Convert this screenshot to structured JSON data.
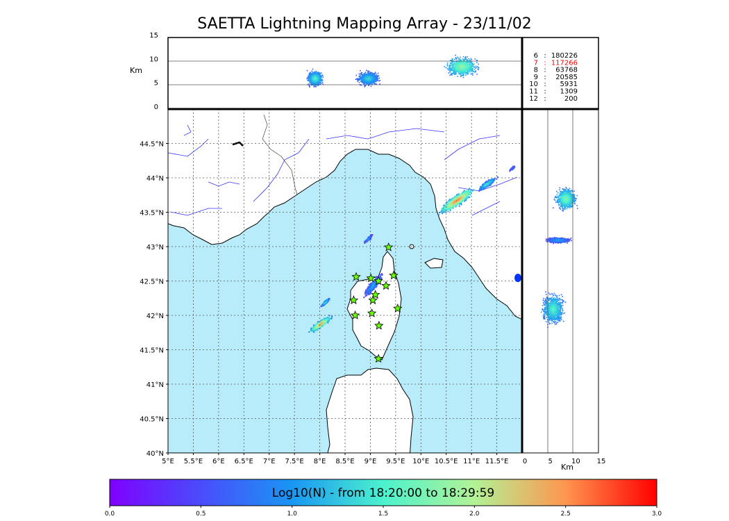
{
  "chart_data": {
    "type": "scatter",
    "title": "SAETTA Lightning Mapping Array - 23/11/02",
    "map": {
      "xlim": [
        5,
        12
      ],
      "ylim": [
        40,
        45
      ],
      "x_ticks": [
        "5°E",
        "5.5°E",
        "6°E",
        "6.5°E",
        "7°E",
        "7.5°E",
        "8°E",
        "8.5°E",
        "9°E",
        "9.5°E",
        "10°E",
        "10.5°E",
        "11°E",
        "11.5°E"
      ],
      "x_tick_values": [
        5,
        5.5,
        6,
        6.5,
        7,
        7.5,
        8,
        8.5,
        9,
        9.5,
        10,
        10.5,
        11,
        11.5
      ],
      "y_ticks": [
        "40°N",
        "40.5°N",
        "41°N",
        "41.5°N",
        "42°N",
        "42.5°N",
        "43°N",
        "43.5°N",
        "44°N",
        "44.5°N"
      ],
      "y_tick_values": [
        40,
        40.5,
        41,
        41.5,
        42,
        42.5,
        43,
        43.5,
        44,
        44.5
      ],
      "grid": true,
      "stations": [
        {
          "lon": 9.36,
          "lat": 42.99
        },
        {
          "lon": 8.72,
          "lat": 42.56
        },
        {
          "lon": 9.01,
          "lat": 42.54
        },
        {
          "lon": 9.16,
          "lat": 42.5
        },
        {
          "lon": 9.46,
          "lat": 42.58
        },
        {
          "lon": 9.31,
          "lat": 42.43
        },
        {
          "lon": 9.1,
          "lat": 42.3
        },
        {
          "lon": 8.67,
          "lat": 42.22
        },
        {
          "lon": 9.05,
          "lat": 42.22
        },
        {
          "lon": 9.54,
          "lat": 42.1
        },
        {
          "lon": 8.7,
          "lat": 42.0
        },
        {
          "lon": 9.03,
          "lat": 42.03
        },
        {
          "lon": 9.17,
          "lat": 41.85
        },
        {
          "lon": 9.16,
          "lat": 41.37
        }
      ],
      "cells": [
        {
          "lon": 8.0,
          "lat": 41.88,
          "spread_lon": 0.28,
          "spread_lat": 0.14,
          "level": 2.6
        },
        {
          "lon": 8.1,
          "lat": 42.2,
          "spread_lon": 0.12,
          "spread_lat": 0.08,
          "level": 1.5
        },
        {
          "lon": 10.7,
          "lat": 43.68,
          "spread_lon": 0.45,
          "spread_lat": 0.22,
          "level": 2.7
        },
        {
          "lon": 11.3,
          "lat": 43.92,
          "spread_lon": 0.25,
          "spread_lat": 0.12,
          "level": 1.6
        },
        {
          "lon": 8.95,
          "lat": 43.12,
          "spread_lon": 0.1,
          "spread_lat": 0.07,
          "level": 1.1
        },
        {
          "lon": 9.05,
          "lat": 42.45,
          "spread_lon": 0.25,
          "spread_lat": 0.2,
          "level": 1.2
        },
        {
          "lon": 11.8,
          "lat": 44.15,
          "spread_lon": 0.08,
          "spread_lat": 0.05,
          "level": 0.9
        }
      ]
    },
    "top_panel": {
      "ylabel": "Km",
      "y_ticks": [
        "0",
        "5",
        "10",
        "15"
      ],
      "ylim": [
        0,
        15
      ],
      "bands": [
        {
          "lon": 7.9,
          "alt": 6.5,
          "spread_lon": 0.22,
          "spread_alt": 2.5,
          "level": 1.6
        },
        {
          "lon": 8.95,
          "alt": 6.5,
          "spread_lon": 0.3,
          "spread_alt": 2.3,
          "level": 1.4
        },
        {
          "lon": 10.8,
          "alt": 9.0,
          "spread_lon": 0.45,
          "spread_alt": 3.2,
          "level": 1.9
        }
      ]
    },
    "side_panel": {
      "xlabel": "Km",
      "x_ticks": [
        "0",
        "5",
        "10",
        "15"
      ],
      "xlim": [
        0,
        15
      ],
      "bands": [
        {
          "lat": 43.7,
          "alt": 8.5,
          "spread_lat": 0.25,
          "spread_alt": 3.2,
          "level": 1.8
        },
        {
          "lat": 43.1,
          "alt": 7.0,
          "spread_lat": 0.06,
          "spread_alt": 3.5,
          "level": 1.1
        },
        {
          "lat": 42.1,
          "alt": 6.0,
          "spread_lat": 0.35,
          "spread_alt": 3.5,
          "level": 1.6
        }
      ]
    },
    "legend": [
      {
        "n": "6",
        "sep": ":",
        "count": "180226",
        "color": "#000000"
      },
      {
        "n": "7",
        "sep": ":",
        "count": "117266",
        "color": "#ff0000"
      },
      {
        "n": "8",
        "sep": ":",
        "count": "63768",
        "color": "#000000"
      },
      {
        "n": "9",
        "sep": ":",
        "count": "20585",
        "color": "#000000"
      },
      {
        "n": "10",
        "sep": ":",
        "count": "5931",
        "color": "#000000"
      },
      {
        "n": "11",
        "sep": ":",
        "count": "1309",
        "color": "#000000"
      },
      {
        "n": "12",
        "sep": ":",
        "count": "200",
        "color": "#000000"
      }
    ],
    "colorbar": {
      "label": "Log10(N) - from 18:20:00 to 18:29:59",
      "range": [
        0,
        3
      ],
      "ticks": [
        "0.0",
        "0.5",
        "1.0",
        "1.5",
        "2.0",
        "2.5",
        "3.0"
      ],
      "colormap": "rainbow"
    },
    "colors": {
      "sea": "#b8ecfa",
      "land": "#ffffff",
      "rivers": "#3333ff",
      "borders": "#444444",
      "station_fill": "#66ff00",
      "station_edge": "#000000"
    }
  }
}
